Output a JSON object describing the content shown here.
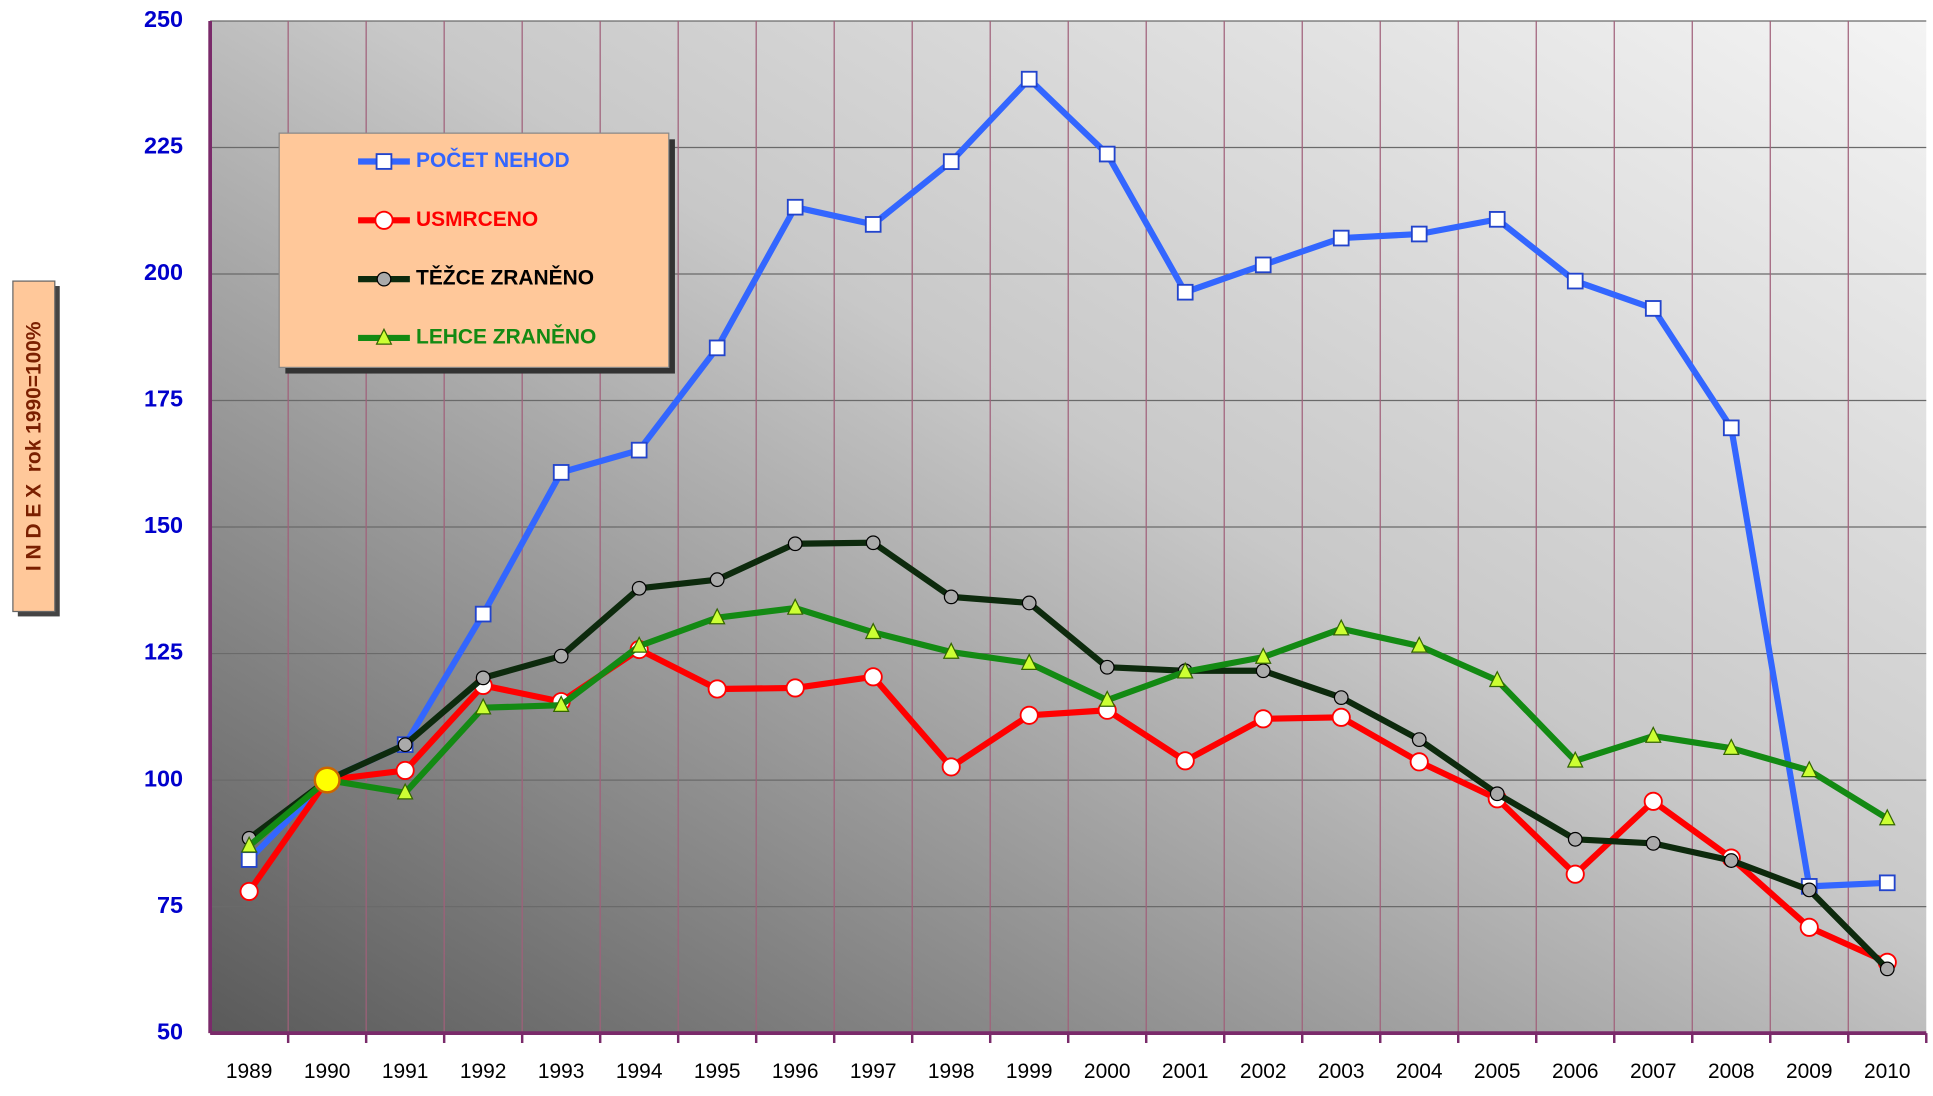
{
  "chart_data": {
    "type": "line",
    "y_label": "I N D E X  rok 1990=100%",
    "categories": [
      "1989",
      "1990",
      "1991",
      "1992",
      "1993",
      "1994",
      "1995",
      "1996",
      "1997",
      "1998",
      "1999",
      "2000",
      "2001",
      "2002",
      "2003",
      "2004",
      "2005",
      "2006",
      "2007",
      "2008",
      "2009",
      "2010"
    ],
    "series": [
      {
        "name": "POČET NEHOD",
        "color": "#3366ff",
        "marker": "square",
        "values": [
          84.3,
          100,
          107,
          132.8,
          160.8,
          165.2,
          185.4,
          213.2,
          209.8,
          222.2,
          238.5,
          223.7,
          196.4,
          201.8,
          207.1,
          207.9,
          210.8,
          198.6,
          193.2,
          169.6,
          79,
          79.7
        ]
      },
      {
        "name": "USMRCENO",
        "color": "#ff0000",
        "marker": "circle",
        "values": [
          78,
          100,
          101.9,
          118.7,
          115.5,
          125.8,
          118,
          118.2,
          120.4,
          102.6,
          112.8,
          113.8,
          103.8,
          112.1,
          112.4,
          103.6,
          96.3,
          81.4,
          95.8,
          84.6,
          70.9,
          64
        ]
      },
      {
        "name": "TĚŽCE ZRANĚNO",
        "color": "#0d2a0d",
        "marker": "circle-gray",
        "values": [
          88.5,
          100,
          107,
          120.2,
          124.5,
          137.9,
          139.6,
          146.7,
          146.9,
          136.2,
          135,
          122.3,
          121.6,
          121.6,
          116.3,
          108,
          97.3,
          88.3,
          87.5,
          84.1,
          78.3,
          62.7
        ]
      },
      {
        "name": "LEHCE ZRANĚNO",
        "color": "#138a13",
        "marker": "triangle",
        "values": [
          87,
          100,
          97.5,
          114.3,
          114.8,
          126.5,
          132.1,
          134,
          129.2,
          125.3,
          123.1,
          115.8,
          121.4,
          124.3,
          129.9,
          126.5,
          119.7,
          103.8,
          108.7,
          106.3,
          101.9,
          92.4
        ]
      }
    ],
    "ylim": [
      50,
      250
    ],
    "yticks": [
      50,
      75,
      100,
      125,
      150,
      175,
      200,
      225,
      250
    ],
    "grid": true
  }
}
